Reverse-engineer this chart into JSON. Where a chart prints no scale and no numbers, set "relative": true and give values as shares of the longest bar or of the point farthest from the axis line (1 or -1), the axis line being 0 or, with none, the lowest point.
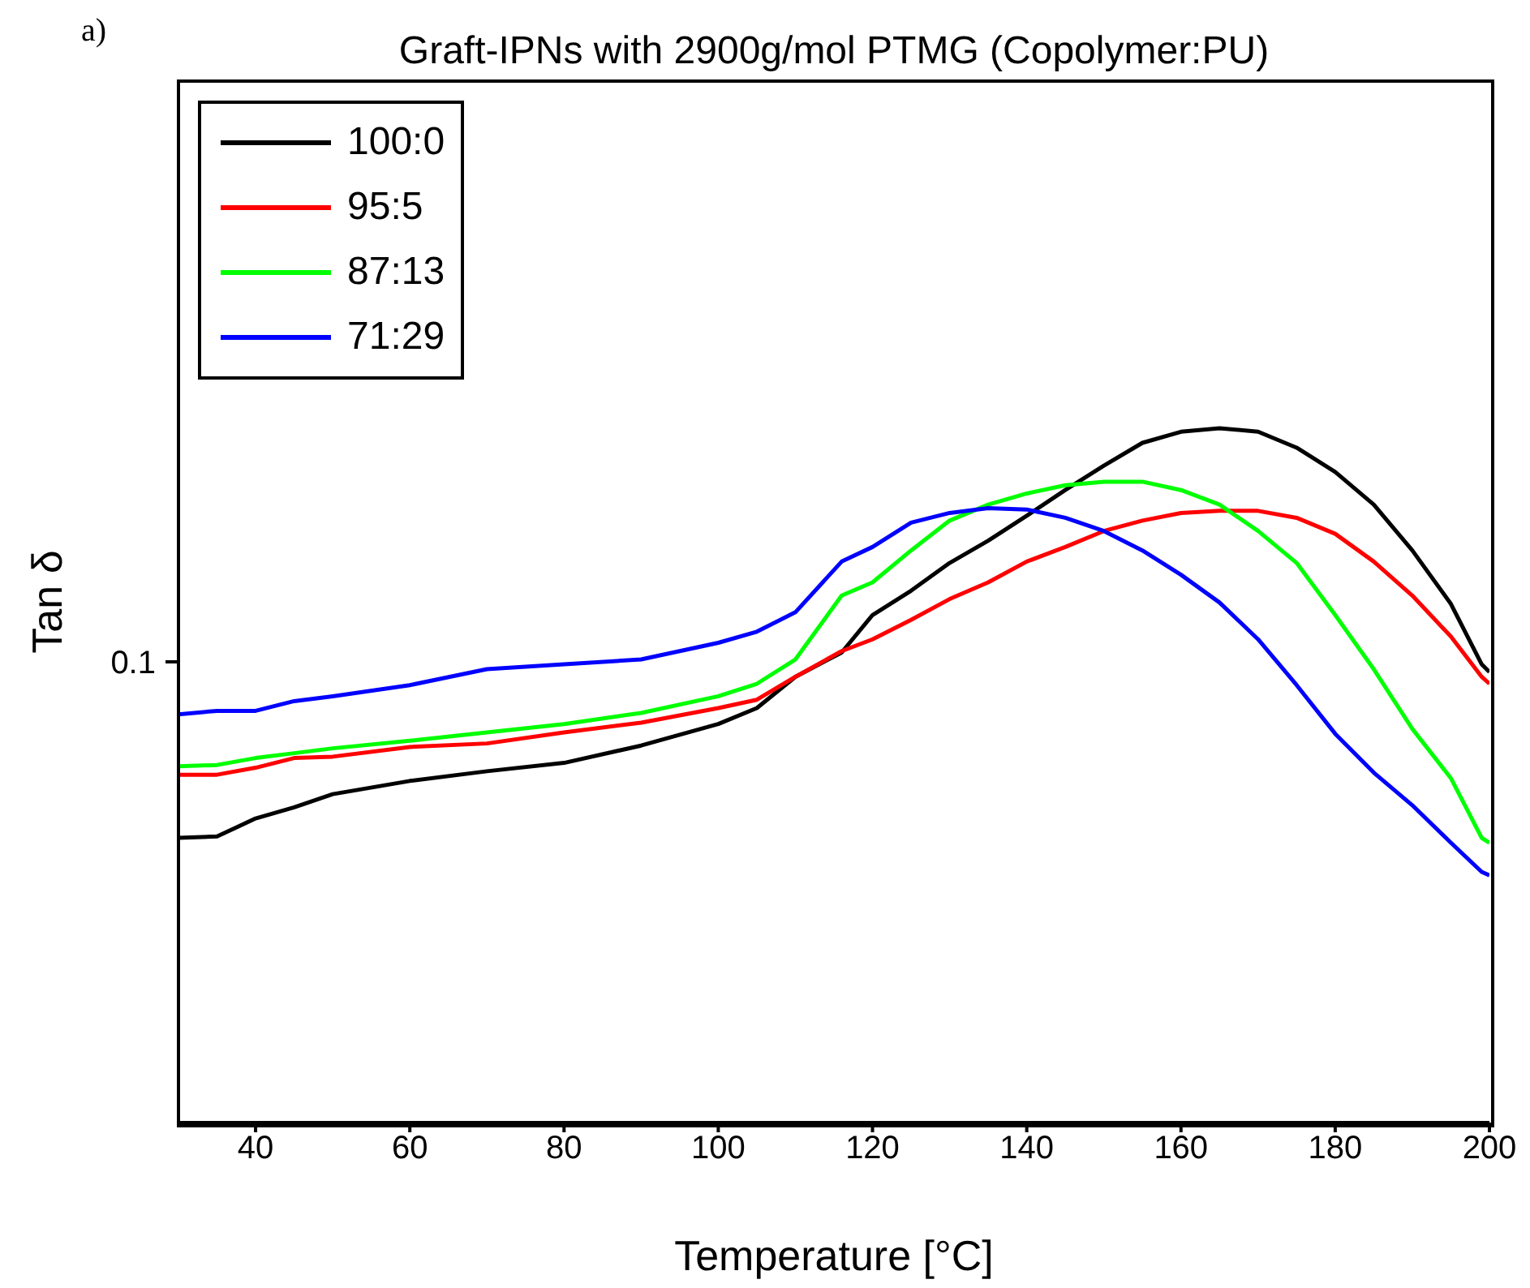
{
  "chart_data": {
    "type": "line",
    "title": "Graft-IPNs with 2900g/mol PTMG (Copolymer:PU)",
    "xlabel": "Temperature [°C]",
    "ylabel": "Tan δ",
    "relative": true,
    "annotations": [
      "a)",
      "0.1"
    ],
    "x": [
      30,
      35,
      40,
      45,
      50,
      60,
      70,
      80,
      90,
      100,
      105,
      110,
      116,
      120,
      125,
      130,
      135,
      140,
      145,
      150,
      155,
      160,
      165,
      170,
      175,
      180,
      185,
      190,
      195,
      199,
      200
    ],
    "series": [
      {
        "name": "100:0",
        "color": "#000000",
        "values": [
          0.41,
          0.412,
          0.438,
          0.454,
          0.473,
          0.492,
          0.506,
          0.518,
          0.543,
          0.574,
          0.597,
          0.642,
          0.677,
          0.731,
          0.766,
          0.806,
          0.838,
          0.874,
          0.911,
          0.946,
          0.979,
          0.995,
          1,
          0.995,
          0.972,
          0.937,
          0.89,
          0.824,
          0.747,
          0.66,
          0.649
        ]
      },
      {
        "name": "95:5",
        "color": "#ff0000",
        "values": [
          0.501,
          0.501,
          0.511,
          0.525,
          0.527,
          0.541,
          0.546,
          0.562,
          0.576,
          0.597,
          0.609,
          0.642,
          0.679,
          0.696,
          0.724,
          0.754,
          0.778,
          0.808,
          0.829,
          0.852,
          0.867,
          0.878,
          0.881,
          0.881,
          0.871,
          0.848,
          0.808,
          0.759,
          0.7,
          0.642,
          0.632
        ]
      },
      {
        "name": "87:13",
        "color": "#00ff00",
        "values": [
          0.513,
          0.515,
          0.525,
          0.532,
          0.539,
          0.55,
          0.562,
          0.574,
          0.59,
          0.614,
          0.632,
          0.667,
          0.759,
          0.778,
          0.824,
          0.867,
          0.89,
          0.906,
          0.918,
          0.923,
          0.923,
          0.911,
          0.89,
          0.852,
          0.806,
          0.731,
          0.653,
          0.567,
          0.496,
          0.41,
          0.403
        ]
      },
      {
        "name": "71:29",
        "color": "#0000ff",
        "values": [
          0.588,
          0.593,
          0.593,
          0.607,
          0.614,
          0.63,
          0.653,
          0.66,
          0.667,
          0.691,
          0.707,
          0.735,
          0.808,
          0.829,
          0.864,
          0.878,
          0.885,
          0.883,
          0.871,
          0.852,
          0.824,
          0.789,
          0.749,
          0.696,
          0.63,
          0.56,
          0.504,
          0.457,
          0.403,
          0.361,
          0.356
        ]
      }
    ],
    "xlim": [
      30,
      200
    ],
    "xticks": [
      40,
      60,
      80,
      100,
      120,
      140,
      160,
      180,
      200
    ],
    "legend": "top left",
    "line_style": "solid",
    "marker": "none"
  }
}
